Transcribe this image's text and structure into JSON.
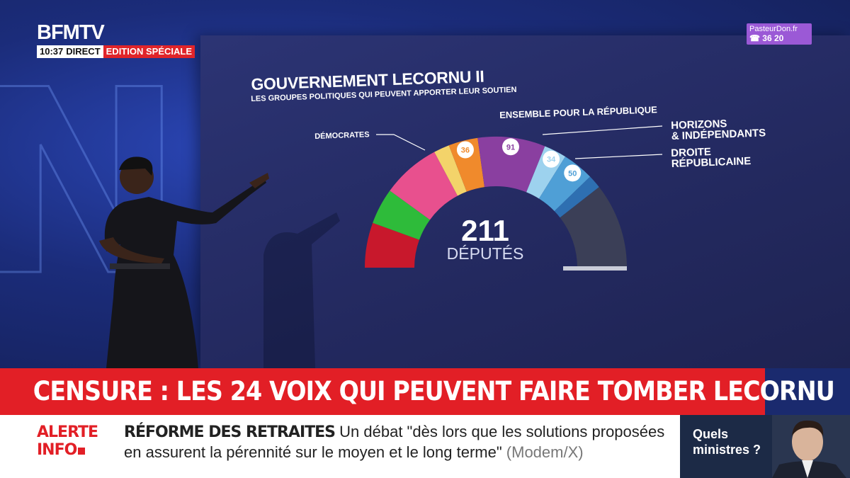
{
  "broadcast": {
    "logo": "BFMTV",
    "time": "10:37",
    "direct": "DIRECT",
    "edition": "EDITION SPÉCIALE",
    "watermark": "NS",
    "corner_badge": {
      "line1": "PasteurDon.fr",
      "line2": "36 20"
    }
  },
  "graphic": {
    "title": "GOUVERNEMENT LECORNU II",
    "subtitle": "LES GROUPES POLITIQUES QUI PEUVENT APPORTER LEUR SOUTIEN",
    "labels": {
      "democrates": "DÉMOCRATES",
      "epr": "ENSEMBLE POUR LA RÉPUBLIQUE",
      "horizons": "HORIZONS\n& INDÉPENDANTS",
      "droite": "DROITE\nRÉPUBLICAINE"
    },
    "total_value": "211",
    "total_label": "DÉPUTÉS"
  },
  "chart_data": {
    "type": "pie",
    "subtype": "hemicycle",
    "title": "GOUVERNEMENT LECORNU II",
    "segments": [
      {
        "value": null,
        "color": "#c8182c"
      },
      {
        "value": null,
        "color": "#2ebb3a"
      },
      {
        "value": null,
        "color": "#e8508e"
      },
      {
        "value": null,
        "color": "#f3d36a"
      },
      {
        "value": 36,
        "label": "DÉMOCRATES",
        "color": "#f08a2c"
      },
      {
        "value": 91,
        "label": "ENSEMBLE POUR LA RÉPUBLIQUE",
        "color": "#8a3fa0"
      },
      {
        "value": 34,
        "label": "HORIZONS & INDÉPENDANTS",
        "color": "#9dd2ee"
      },
      {
        "value": 50,
        "label": "DROITE RÉPUBLICAINE",
        "color": "#4f9fd6"
      },
      {
        "value": null,
        "color": "#2e6fb1"
      },
      {
        "value": null,
        "color": "#3b3f57"
      }
    ],
    "total": 211
  },
  "ticker": {
    "headline": "CENSURE : LES 24 VOIX QUI PEUVENT FAIRE TOMBER LECORNU"
  },
  "alert": {
    "label_line1": "ALERTE",
    "label_line2": "INFO",
    "topic": "RÉFORME DES RETRAITES",
    "text": "Un débat \"dès lors que les solutions proposées en assurent la pérennité sur le moyen et le long terme\"",
    "source": "(Modem/X)"
  },
  "side_panel": {
    "title": "Quels ministres ?"
  }
}
